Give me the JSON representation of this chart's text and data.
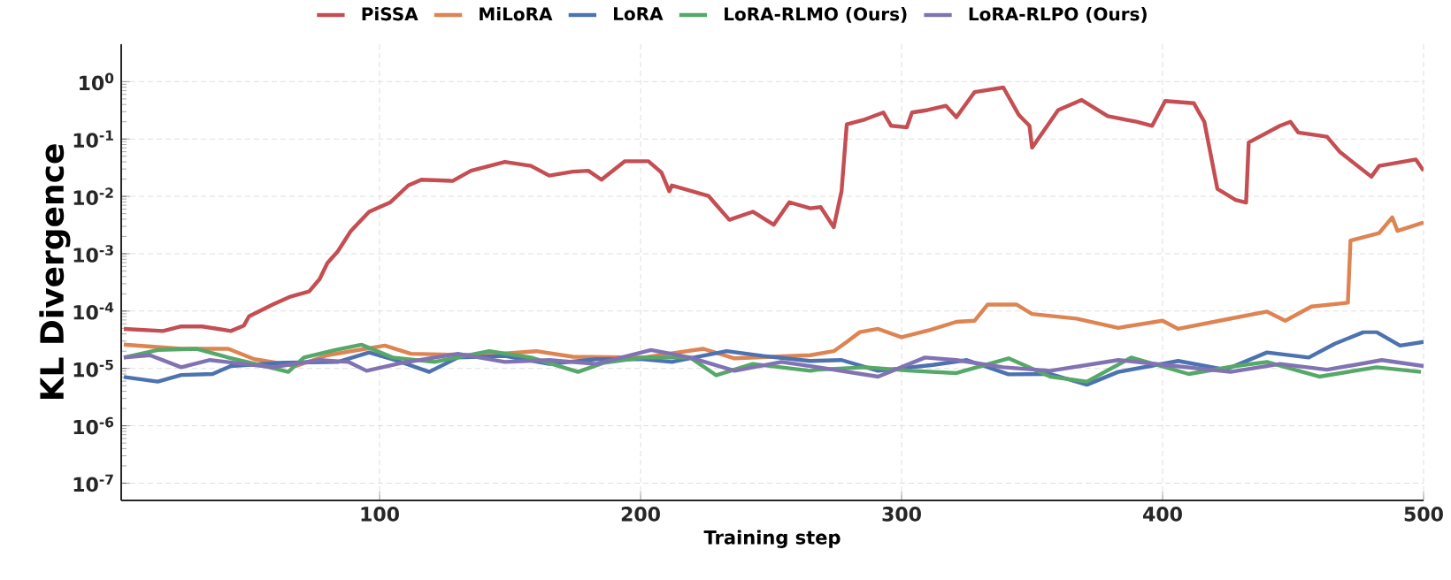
{
  "chart_data": {
    "type": "line",
    "xlabel": "Training step",
    "ylabel": "KL Divergence",
    "log": "y",
    "grid": true,
    "legend": "top",
    "xlim": [
      1,
      500
    ],
    "xticks": [
      100,
      200,
      300,
      400,
      500
    ],
    "ylim": [
      5e-08,
      4.5
    ],
    "yticks": [
      {
        "value": 1e-07,
        "label": "10$^{-7}$"
      },
      {
        "value": 1e-06,
        "label": "10$^{-6}$"
      },
      {
        "value": 1e-05,
        "label": "10$^{-5}$"
      },
      {
        "value": 0.0001,
        "label": "10$^{-4}$"
      },
      {
        "value": 0.001,
        "label": "10$^{-3}$"
      },
      {
        "value": 0.01,
        "label": "10$^{-2}$"
      },
      {
        "value": 0.1,
        "label": "10$^{-1}$"
      },
      {
        "value": 1,
        "label": "10$^{0}$"
      }
    ],
    "series": [
      {
        "name": "PiSSA",
        "color": "#c44e52",
        "x": [
          2,
          17,
          24,
          32,
          43,
          48,
          50,
          59,
          66,
          73,
          77,
          80,
          84,
          89,
          96,
          104,
          111,
          116,
          128,
          135,
          148,
          158,
          165,
          174,
          180,
          185,
          194,
          203,
          208,
          211,
          212,
          226,
          229,
          234,
          243,
          251,
          257,
          265,
          269,
          274,
          277,
          279,
          286,
          293,
          296,
          302,
          304,
          310,
          317,
          321,
          328,
          339,
          345,
          349,
          350,
          360,
          369,
          379,
          390,
          396,
          401,
          412,
          416,
          421,
          428,
          432,
          433,
          445,
          449,
          452,
          463,
          468,
          480,
          483,
          497,
          500
        ],
        "values": [
          4.9e-05,
          4.5e-05,
          5.4e-05,
          5.4e-05,
          4.5e-05,
          5.6e-05,
          8.1e-05,
          0.00013,
          0.00018,
          0.00022,
          0.00036,
          0.00069,
          0.0011,
          0.0025,
          0.0054,
          0.0078,
          0.0155,
          0.0195,
          0.0186,
          0.028,
          0.04,
          0.034,
          0.023,
          0.027,
          0.028,
          0.0195,
          0.041,
          0.041,
          0.026,
          0.0123,
          0.0155,
          0.0102,
          0.0071,
          0.0039,
          0.0054,
          0.0032,
          0.0079,
          0.0062,
          0.0065,
          0.0029,
          0.0123,
          0.18,
          0.22,
          0.29,
          0.17,
          0.16,
          0.29,
          0.32,
          0.38,
          0.24,
          0.66,
          0.79,
          0.26,
          0.17,
          0.071,
          0.32,
          0.48,
          0.25,
          0.2,
          0.17,
          0.46,
          0.42,
          0.2,
          0.0135,
          0.0087,
          0.0078,
          0.087,
          0.17,
          0.2,
          0.13,
          0.11,
          0.059,
          0.022,
          0.034,
          0.044,
          0.028
        ]
      },
      {
        "name": "MiLoRA",
        "color": "#dd8452",
        "x": [
          2,
          24,
          42,
          52,
          68,
          80,
          102,
          112,
          139,
          160,
          174,
          201,
          224,
          236,
          265,
          274,
          279,
          284,
          291,
          300,
          311,
          321,
          328,
          333,
          344,
          350,
          367,
          383,
          400,
          406,
          424,
          440,
          447,
          457,
          471,
          472,
          483,
          488,
          490,
          500
        ],
        "values": [
          2.6e-05,
          2.2e-05,
          2.2e-05,
          1.45e-05,
          1.1e-05,
          1.7e-05,
          2.5e-05,
          1.8e-05,
          1.7e-05,
          2e-05,
          1.6e-05,
          1.55e-05,
          2.2e-05,
          1.5e-05,
          1.7e-05,
          2e-05,
          2.9e-05,
          4.3e-05,
          4.9e-05,
          3.5e-05,
          4.7e-05,
          6.5e-05,
          6.8e-05,
          0.00013,
          0.00013,
          8.9e-05,
          7.4e-05,
          5.1e-05,
          6.8e-05,
          4.9e-05,
          7.1e-05,
          9.8e-05,
          6.8e-05,
          0.00012,
          0.00014,
          0.0017,
          0.0023,
          0.0043,
          0.0025,
          0.0035
        ]
      },
      {
        "name": "LoRA",
        "color": "#4c72b0",
        "x": [
          2,
          15,
          24,
          36,
          43,
          63,
          84,
          96,
          107,
          119,
          130,
          148,
          165,
          183,
          201,
          212,
          233,
          247,
          265,
          277,
          291,
          312,
          325,
          341,
          357,
          371,
          383,
          406,
          424,
          440,
          456,
          466,
          477,
          482,
          491,
          500
        ],
        "values": [
          7.1e-06,
          5.9e-06,
          7.7e-06,
          8e-06,
          1.1e-05,
          1.26e-05,
          1.3e-05,
          1.9e-05,
          1.35e-05,
          8.7e-06,
          1.55e-05,
          1.65e-05,
          1.2e-05,
          1.45e-05,
          1.45e-05,
          1.3e-05,
          2e-05,
          1.65e-05,
          1.35e-05,
          1.4e-05,
          9.1e-06,
          1.15e-05,
          1.4e-05,
          7.9e-06,
          8e-06,
          5.2e-06,
          8.7e-06,
          1.35e-05,
          9.5e-06,
          1.9e-05,
          1.55e-05,
          2.7e-05,
          4.3e-05,
          4.3e-05,
          2.5e-05,
          2.9e-05
        ]
      },
      {
        "name": "LoRA-RLMO (Ours)",
        "color": "#55a868",
        "x": [
          2,
          15,
          30,
          42,
          56,
          65,
          71,
          83,
          93,
          105,
          121,
          142,
          158,
          176,
          186,
          201,
          219,
          229,
          243,
          265,
          268,
          286,
          304,
          321,
          341,
          357,
          371,
          388,
          410,
          428,
          440,
          460,
          482,
          499
        ],
        "values": [
          1.55e-05,
          2.1e-05,
          2.2e-05,
          1.55e-05,
          1.1e-05,
          8.7e-06,
          1.55e-05,
          2.1e-05,
          2.6e-05,
          1.55e-05,
          1.3e-05,
          2e-05,
          1.55e-05,
          8.7e-06,
          1.26e-05,
          1.55e-05,
          1.55e-05,
          7.6e-06,
          1.2e-05,
          9.1e-06,
          9.5e-06,
          1.05e-05,
          9.1e-06,
          8.3e-06,
          1.5e-05,
          7.2e-06,
          5.9e-06,
          1.55e-05,
          8e-06,
          1.1e-05,
          1.3e-05,
          7.2e-06,
          1.05e-05,
          8.7e-06
        ]
      },
      {
        "name": "LoRA-RLPO (Ours)",
        "color": "#8172b3",
        "x": [
          2,
          12,
          24,
          35,
          59,
          77,
          88,
          95,
          109,
          130,
          148,
          165,
          183,
          204,
          219,
          236,
          254,
          268,
          291,
          309,
          321,
          339,
          357,
          383,
          401,
          426,
          445,
          463,
          484,
          500
        ],
        "values": [
          1.55e-05,
          1.7e-05,
          1.05e-05,
          1.4e-05,
          1.05e-05,
          1.4e-05,
          1.3e-05,
          9.1e-06,
          1.26e-05,
          1.8e-05,
          1.3e-05,
          1.4e-05,
          1.2e-05,
          2.1e-05,
          1.55e-05,
          9.1e-06,
          1.3e-05,
          1.05e-05,
          7.2e-06,
          1.55e-05,
          1.4e-05,
          1.05e-05,
          9.1e-06,
          1.4e-05,
          1.15e-05,
          8.7e-06,
          1.2e-05,
          9.5e-06,
          1.4e-05,
          1.1e-05
        ]
      }
    ]
  }
}
